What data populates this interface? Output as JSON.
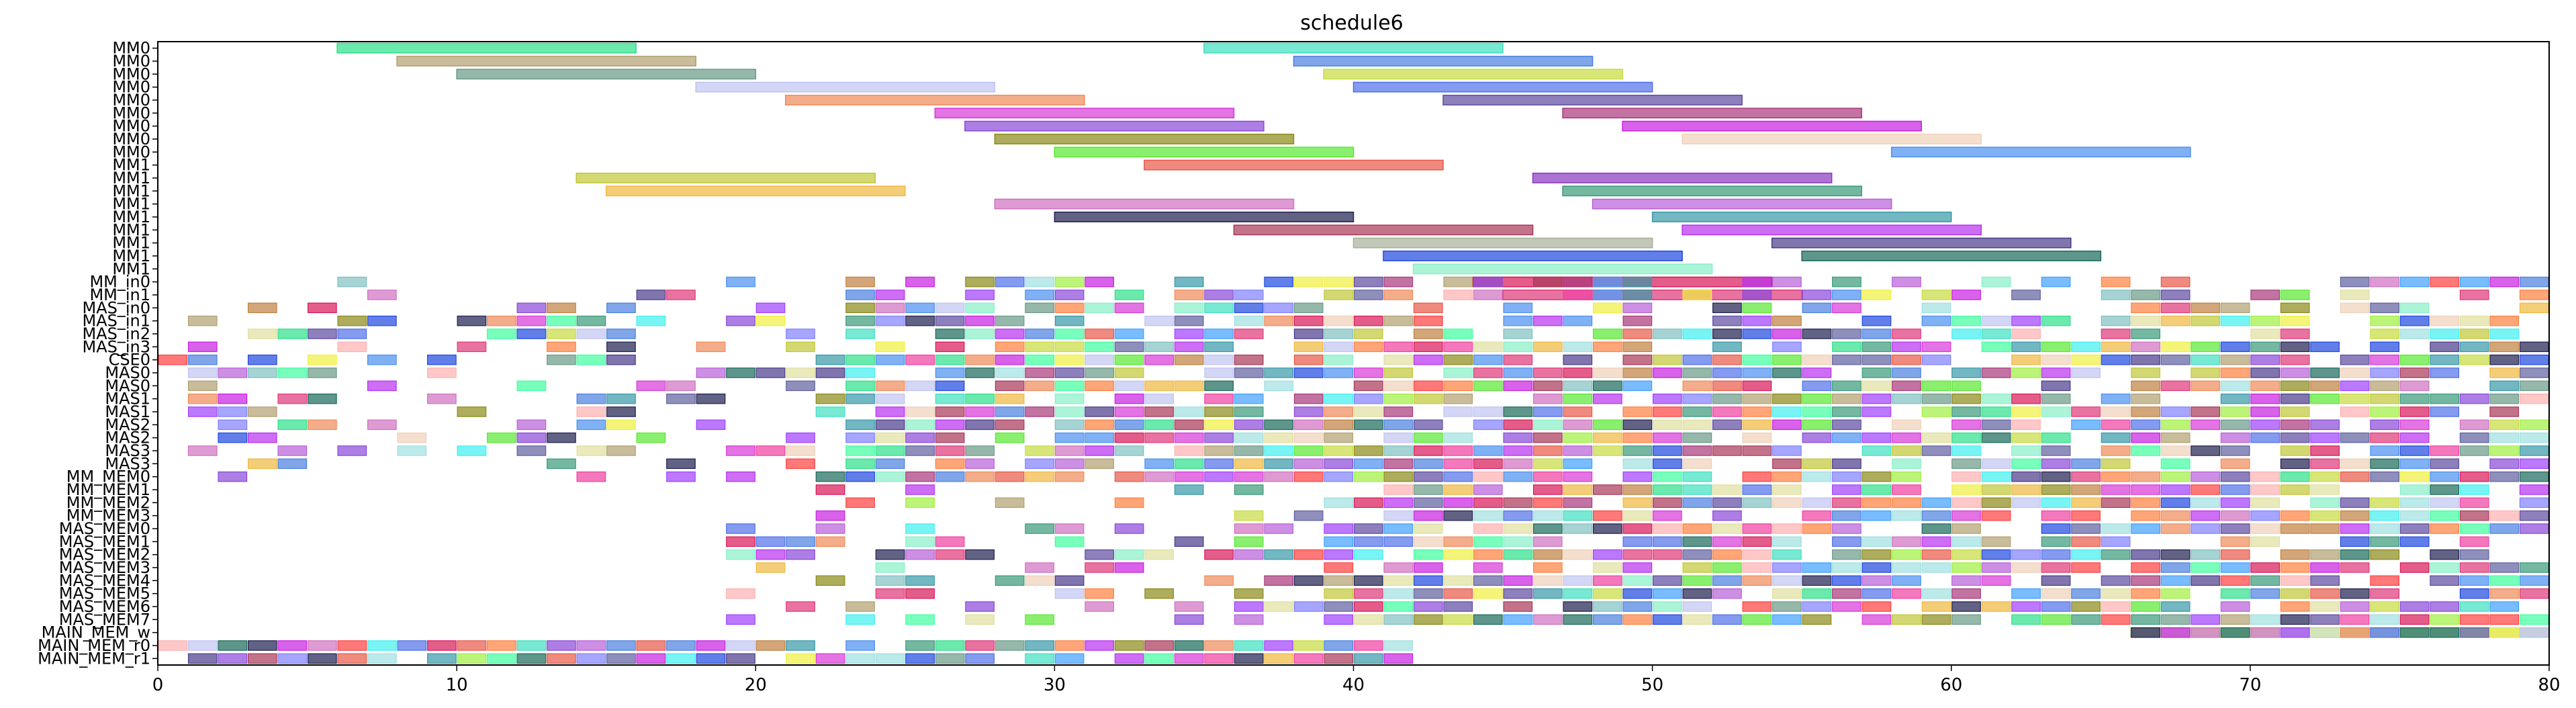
{
  "chart_data": {
    "type": "gantt",
    "title": "schedule6",
    "xlabel": "",
    "ylabel": "",
    "xlim": [
      0,
      80
    ],
    "x_ticks": [
      "0",
      "10",
      "20",
      "30",
      "40",
      "50",
      "60",
      "70",
      "80"
    ],
    "rows": [
      "MM0",
      "MM0",
      "MM0",
      "MM0",
      "MM0",
      "MM0",
      "MM0",
      "MM0",
      "MM0",
      "MM1",
      "MM1",
      "MM1",
      "MM1",
      "MM1",
      "MM1",
      "MM1",
      "MM1",
      "MM1",
      "MM_in0",
      "MM_in1",
      "MAS_in0",
      "MAS_in1",
      "MAS_in2",
      "MAS_in3",
      "CSE0",
      "MAS0",
      "MAS0",
      "MAS1",
      "MAS1",
      "MAS2",
      "MAS2",
      "MAS3",
      "MAS3",
      "MM_MEM0",
      "MM_MEM1",
      "MM_MEM2",
      "MM_MEM3",
      "MAS_MEM0",
      "MAS_MEM1",
      "MAS_MEM2",
      "MAS_MEM3",
      "MAS_MEM4",
      "MAS_MEM5",
      "MAS_MEM6",
      "MAS_MEM7",
      "MAIN_MEM_w",
      "MAIN_MEM_r0",
      "MAIN_MEM_r1"
    ],
    "bars": [
      {
        "row": 0,
        "start": 6,
        "end": 16,
        "color": "#2ee08a"
      },
      {
        "row": 0,
        "start": 35,
        "end": 45,
        "color": "#3ee0c0"
      },
      {
        "row": 1,
        "start": 8,
        "end": 18,
        "color": "#b0a070"
      },
      {
        "row": 1,
        "start": 38,
        "end": 48,
        "color": "#4a80e0"
      },
      {
        "row": 2,
        "start": 10,
        "end": 20,
        "color": "#6a9a88"
      },
      {
        "row": 2,
        "start": 39,
        "end": 49,
        "color": "#c8dc40"
      },
      {
        "row": 3,
        "start": 18,
        "end": 28,
        "color": "#c0c4f0"
      },
      {
        "row": 3,
        "start": 40,
        "end": 50,
        "color": "#5070e8"
      },
      {
        "row": 4,
        "start": 21,
        "end": 31,
        "color": "#f08a58"
      },
      {
        "row": 4,
        "start": 43,
        "end": 53,
        "color": "#5c4aa0"
      },
      {
        "row": 5,
        "start": 26,
        "end": 36,
        "color": "#d838d8"
      },
      {
        "row": 5,
        "start": 47,
        "end": 57,
        "color": "#a8387a"
      },
      {
        "row": 6,
        "start": 27,
        "end": 37,
        "color": "#8a48d8"
      },
      {
        "row": 6,
        "start": 49,
        "end": 59,
        "color": "#c820e0"
      },
      {
        "row": 7,
        "start": 28,
        "end": 38,
        "color": "#8a8a18"
      },
      {
        "row": 7,
        "start": 51,
        "end": 61,
        "color": "#f0d0b8"
      },
      {
        "row": 8,
        "start": 30,
        "end": 40,
        "color": "#58e830"
      },
      {
        "row": 8,
        "start": 58,
        "end": 68,
        "color": "#4a90f0"
      },
      {
        "row": 9,
        "start": 33,
        "end": 43,
        "color": "#e85848"
      },
      {
        "row": 10,
        "start": 14,
        "end": 24,
        "color": "#c0c838"
      },
      {
        "row": 10,
        "start": 46,
        "end": 56,
        "color": "#8a38c0"
      },
      {
        "row": 11,
        "start": 15,
        "end": 25,
        "color": "#f0b840"
      },
      {
        "row": 11,
        "start": 47,
        "end": 57,
        "color": "#3a9a7a"
      },
      {
        "row": 12,
        "start": 28,
        "end": 38,
        "color": "#d070c0"
      },
      {
        "row": 12,
        "start": 48,
        "end": 58,
        "color": "#b860d8"
      },
      {
        "row": 13,
        "start": 30,
        "end": 40,
        "color": "#202050"
      },
      {
        "row": 13,
        "start": 50,
        "end": 60,
        "color": "#3898a8"
      },
      {
        "row": 14,
        "start": 36,
        "end": 46,
        "color": "#a83858"
      },
      {
        "row": 14,
        "start": 51,
        "end": 61,
        "color": "#b830f0"
      },
      {
        "row": 15,
        "start": 40,
        "end": 50,
        "color": "#a8b098"
      },
      {
        "row": 15,
        "start": 54,
        "end": 64,
        "color": "#4a3a8a"
      },
      {
        "row": 16,
        "start": 41,
        "end": 51,
        "color": "#2048e0"
      },
      {
        "row": 16,
        "start": 55,
        "end": 65,
        "color": "#1a6a5a"
      },
      {
        "row": 17,
        "start": 42,
        "end": 52,
        "color": "#88f0c8"
      },
      {
        "row": 18,
        "start": 44,
        "end": 54,
        "color": "#d81858"
      },
      {
        "row": 19,
        "start": 45,
        "end": 55,
        "color": "#e03878"
      },
      {
        "row": 45,
        "start": 66,
        "end": 80,
        "color": "#c0d8a0"
      }
    ],
    "block_rows": [
      18,
      19,
      20,
      21,
      22,
      23,
      24,
      25,
      26,
      27,
      28,
      29,
      30,
      31,
      32,
      33,
      34,
      35,
      36,
      37,
      38,
      39,
      40,
      41,
      42,
      43,
      44,
      45,
      46,
      47
    ],
    "block_width": 1,
    "palette": [
      "#2ee08a",
      "#b0a070",
      "#6a9a88",
      "#c0c4f0",
      "#f08a58",
      "#d838d8",
      "#8a48d8",
      "#8a8a18",
      "#58e830",
      "#e85848",
      "#c0c838",
      "#f0b840",
      "#d070c0",
      "#202050",
      "#a83858",
      "#3ee0c0",
      "#4a80e0",
      "#c8dc40",
      "#5070e8",
      "#5c4aa0",
      "#a8387a",
      "#c820e0",
      "#f0d0b8",
      "#4a90f0",
      "#3a9a7a",
      "#b860d8",
      "#3898a8",
      "#b830f0",
      "#4a3a8a",
      "#2048e0",
      "#1a6a5a",
      "#88f0c8",
      "#d81858",
      "#e03878",
      "#f0f040",
      "#40f0f0",
      "#f040a0",
      "#a0f040",
      "#8080ff",
      "#ff8040",
      "#40a0ff",
      "#a040ff",
      "#40ffa0",
      "#ff4040",
      "#80c0c0",
      "#c08040",
      "#6060a0",
      "#e0e0a0",
      "#a0e0e0",
      "#ffb0b0"
    ],
    "grid": false,
    "legend": "none"
  }
}
